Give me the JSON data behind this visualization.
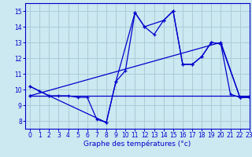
{
  "title": "Graphe des températures (°c)",
  "background_color": "#cce8f0",
  "grid_color": "#aaccd8",
  "line_color": "#0000cc",
  "xlim": [
    -0.5,
    23
  ],
  "ylim": [
    7.5,
    15.5
  ],
  "xticks": [
    0,
    1,
    2,
    3,
    4,
    5,
    6,
    7,
    8,
    9,
    10,
    11,
    12,
    13,
    14,
    15,
    16,
    17,
    18,
    19,
    20,
    21,
    22,
    23
  ],
  "yticks": [
    8,
    9,
    10,
    11,
    12,
    13,
    14,
    15
  ],
  "series": [
    {
      "x": [
        0,
        1,
        2,
        3,
        4,
        5,
        6,
        7,
        8,
        9,
        10,
        11,
        12,
        13,
        14,
        15,
        16,
        17,
        18,
        19,
        20,
        21,
        22,
        23
      ],
      "y": [
        10.2,
        9.9,
        9.6,
        9.6,
        9.6,
        9.5,
        9.5,
        8.1,
        7.9,
        10.5,
        11.2,
        14.9,
        14.0,
        13.5,
        14.4,
        15.0,
        11.6,
        11.6,
        12.1,
        13.0,
        12.9,
        9.7,
        9.5,
        9.5
      ]
    },
    {
      "x": [
        0,
        2,
        8,
        9,
        11,
        12,
        14,
        15,
        16,
        17,
        18,
        19,
        20,
        22,
        23
      ],
      "y": [
        10.2,
        9.6,
        7.9,
        10.5,
        14.9,
        14.0,
        14.4,
        15.0,
        11.6,
        11.6,
        12.1,
        13.0,
        12.9,
        9.5,
        9.5
      ]
    },
    {
      "x": [
        0,
        23
      ],
      "y": [
        9.6,
        9.6
      ]
    },
    {
      "x": [
        0,
        20,
        22,
        23
      ],
      "y": [
        9.6,
        13.0,
        9.5,
        9.5
      ]
    }
  ]
}
